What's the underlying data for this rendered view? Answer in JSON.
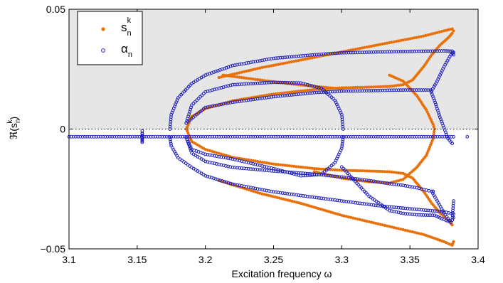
{
  "chart_data": {
    "type": "scatter",
    "xlabel_prefix": "Excitation frequency ",
    "xlabel_symbol": "ω",
    "ylabel_base": "ℜ(s",
    "ylabel_sub": "n",
    "ylabel_sup": "k",
    "ylabel_close": ")",
    "xlim": [
      3.1,
      3.4
    ],
    "ylim": [
      -0.05,
      0.05
    ],
    "x_ticks": [
      "3.1",
      "3.15",
      "3.2",
      "3.25",
      "3.3",
      "3.35",
      "3.4"
    ],
    "y_ticks": [
      "−0.05",
      "0",
      "0.05"
    ],
    "shaded_region": {
      "y_from": 0,
      "y_to": 0.05,
      "color": "#e6e6e6"
    },
    "zero_line": {
      "y": 0,
      "style": "dotted"
    },
    "legend": {
      "position": "top-left",
      "entries": [
        {
          "base": "s",
          "sup": "k",
          "sub": "n",
          "color": "#e8710a",
          "marker": "filled-circle"
        },
        {
          "base": "α",
          "sup": "",
          "sub": "n",
          "color": "#1f1fbf",
          "marker": "open-circle"
        }
      ]
    },
    "series": [
      {
        "name": "s_n^k",
        "color": "#e8710a",
        "marker": "filled",
        "curves": [
          [
            [
              3.186,
              0.0
            ],
            [
              3.19,
              0.0052
            ],
            [
              3.2,
              0.0085
            ],
            [
              3.22,
              0.0118
            ],
            [
              3.25,
              0.0146
            ],
            [
              3.28,
              0.0165
            ],
            [
              3.3,
              0.0172
            ],
            [
              3.32,
              0.0175
            ],
            [
              3.335,
              0.0178
            ],
            [
              3.345,
              0.0185
            ],
            [
              3.352,
              0.0205
            ],
            [
              3.36,
              0.026
            ],
            [
              3.366,
              0.031
            ],
            [
              3.372,
              0.035
            ],
            [
              3.378,
              0.038
            ],
            [
              3.381,
              0.04
            ]
          ],
          [
            [
              3.186,
              0.0
            ],
            [
              3.19,
              -0.0052
            ],
            [
              3.2,
              -0.0085
            ],
            [
              3.22,
              -0.0118
            ],
            [
              3.25,
              -0.0146
            ],
            [
              3.28,
              -0.0165
            ],
            [
              3.3,
              -0.0172
            ],
            [
              3.32,
              -0.0175
            ],
            [
              3.335,
              -0.0178
            ],
            [
              3.345,
              -0.0185
            ],
            [
              3.352,
              -0.0205
            ],
            [
              3.36,
              -0.026
            ],
            [
              3.366,
              -0.031
            ],
            [
              3.372,
              -0.035
            ],
            [
              3.378,
              -0.038
            ],
            [
              3.381,
              -0.04
            ]
          ],
          [
            [
              3.21,
              0.0215
            ],
            [
              3.24,
              0.0255
            ],
            [
              3.27,
              0.0288
            ],
            [
              3.3,
              0.0322
            ],
            [
              3.33,
              0.0355
            ],
            [
              3.36,
              0.0388
            ],
            [
              3.375,
              0.041
            ],
            [
              3.381,
              0.0418
            ],
            [
              3.382,
              0.041
            ]
          ],
          [
            [
              3.21,
              -0.0215
            ],
            [
              3.24,
              -0.0268
            ],
            [
              3.27,
              -0.031
            ],
            [
              3.3,
              -0.036
            ],
            [
              3.33,
              -0.04
            ],
            [
              3.36,
              -0.044
            ],
            [
              3.375,
              -0.047
            ],
            [
              3.381,
              -0.0485
            ],
            [
              3.382,
              -0.047
            ]
          ],
          [
            [
              3.213,
              0.0225
            ],
            [
              3.24,
              0.0205
            ],
            [
              3.26,
              0.019
            ],
            [
              3.28,
              0.0178
            ],
            [
              3.3,
              0.0168
            ]
          ],
          [
            [
              3.28,
              -0.0178
            ],
            [
              3.3,
              -0.0205
            ],
            [
              3.32,
              -0.022
            ],
            [
              3.335,
              -0.0225
            ],
            [
              3.345,
              -0.021
            ],
            [
              3.355,
              -0.016
            ],
            [
              3.362,
              -0.011
            ],
            [
              3.367,
              -0.004
            ],
            [
              3.368,
              0.0
            ]
          ],
          [
            [
              3.335,
              0.0225
            ],
            [
              3.345,
              0.02
            ],
            [
              3.355,
              0.014
            ],
            [
              3.362,
              0.008
            ],
            [
              3.367,
              0.002
            ],
            [
              3.368,
              0.0
            ]
          ]
        ]
      },
      {
        "name": "α_n",
        "color": "#1f1fbf",
        "marker": "open",
        "curves": [
          [
            [
              3.1,
              -0.0032
            ],
            [
              3.15,
              -0.0032
            ],
            [
              3.2,
              -0.0032
            ],
            [
              3.25,
              -0.0032
            ],
            [
              3.3,
              -0.0032
            ],
            [
              3.35,
              -0.0032
            ],
            [
              3.382,
              -0.0032
            ]
          ],
          [
            [
              3.1537,
              -0.005
            ],
            [
              3.1537,
              -0.0035
            ],
            [
              3.1537,
              -0.002
            ],
            [
              3.1537,
              -0.0008
            ],
            [
              3.1537,
              -0.0055
            ]
          ],
          [
            [
              3.392,
              -0.0032
            ]
          ],
          [
            [
              3.174,
              0.0
            ],
            [
              3.175,
              0.006
            ],
            [
              3.18,
              0.013
            ],
            [
              3.19,
              0.019
            ],
            [
              3.2,
              0.0225
            ],
            [
              3.22,
              0.0265
            ],
            [
              3.25,
              0.0295
            ],
            [
              3.28,
              0.031
            ],
            [
              3.3,
              0.0318
            ],
            [
              3.33,
              0.0322
            ],
            [
              3.36,
              0.0325
            ],
            [
              3.375,
              0.0326
            ],
            [
              3.381,
              0.0325
            ],
            [
              3.382,
              0.031
            ]
          ],
          [
            [
              3.174,
              -0.0035
            ],
            [
              3.175,
              -0.007
            ],
            [
              3.18,
              -0.012
            ],
            [
              3.19,
              -0.016
            ],
            [
              3.2,
              -0.0195
            ],
            [
              3.22,
              -0.023
            ],
            [
              3.25,
              -0.0262
            ],
            [
              3.28,
              -0.0285
            ],
            [
              3.3,
              -0.03
            ],
            [
              3.33,
              -0.0322
            ],
            [
              3.36,
              -0.0338
            ],
            [
              3.375,
              -0.0345
            ],
            [
              3.382,
              -0.0355
            ]
          ],
          [
            [
              3.186,
              0.0025
            ],
            [
              3.19,
              0.01
            ],
            [
              3.2,
              0.0155
            ],
            [
              3.22,
              0.0185
            ],
            [
              3.25,
              0.0195
            ],
            [
              3.27,
              0.0192
            ],
            [
              3.285,
              0.017
            ],
            [
              3.295,
              0.012
            ],
            [
              3.3,
              0.006
            ],
            [
              3.301,
              0.0
            ]
          ],
          [
            [
              3.186,
              -0.0035
            ],
            [
              3.19,
              -0.01
            ],
            [
              3.2,
              -0.0135
            ],
            [
              3.22,
              -0.016
            ],
            [
              3.25,
              -0.0175
            ],
            [
              3.28,
              -0.0188
            ],
            [
              3.3,
              -0.02
            ],
            [
              3.32,
              -0.0215
            ],
            [
              3.335,
              -0.0228
            ],
            [
              3.345,
              -0.0235
            ],
            [
              3.355,
              -0.0245
            ],
            [
              3.362,
              -0.0255
            ],
            [
              3.366,
              -0.026
            ],
            [
              3.367,
              -0.026
            ]
          ],
          [
            [
              3.186,
              -0.0035
            ],
            [
              3.19,
              -0.0085
            ],
            [
              3.2,
              -0.0105
            ],
            [
              3.22,
              -0.0125
            ],
            [
              3.25,
              -0.0165
            ],
            [
              3.27,
              -0.0195
            ],
            [
              3.285,
              -0.019
            ],
            [
              3.295,
              -0.014
            ],
            [
              3.3,
              -0.008
            ],
            [
              3.301,
              -0.0035
            ]
          ],
          [
            [
              3.186,
              0.0025
            ],
            [
              3.2,
              0.009
            ],
            [
              3.22,
              0.0112
            ],
            [
              3.25,
              0.0135
            ],
            [
              3.28,
              0.0152
            ],
            [
              3.3,
              0.0158
            ],
            [
              3.32,
              0.016
            ],
            [
              3.335,
              0.0162
            ],
            [
              3.35,
              0.0163
            ],
            [
              3.365,
              0.0163
            ],
            [
              3.368,
              0.012
            ],
            [
              3.372,
              0.005
            ],
            [
              3.378,
              -0.004
            ],
            [
              3.381,
              -0.006
            ]
          ],
          [
            [
              3.3,
              -0.0158
            ],
            [
              3.32,
              -0.028
            ],
            [
              3.335,
              -0.034
            ],
            [
              3.345,
              -0.0352
            ],
            [
              3.355,
              -0.0358
            ],
            [
              3.368,
              -0.036
            ],
            [
              3.372,
              -0.037
            ],
            [
              3.378,
              -0.0385
            ],
            [
              3.381,
              -0.038
            ],
            [
              3.382,
              -0.03
            ]
          ],
          [
            [
              3.366,
              -0.026
            ],
            [
              3.37,
              -0.03
            ],
            [
              3.375,
              -0.035
            ],
            [
              3.38,
              -0.039
            ],
            [
              3.382,
              -0.037
            ]
          ],
          [
            [
              3.366,
              0.016
            ],
            [
              3.37,
              0.02
            ],
            [
              3.375,
              0.026
            ],
            [
              3.38,
              0.031
            ],
            [
              3.382,
              0.032
            ]
          ]
        ]
      }
    ]
  }
}
